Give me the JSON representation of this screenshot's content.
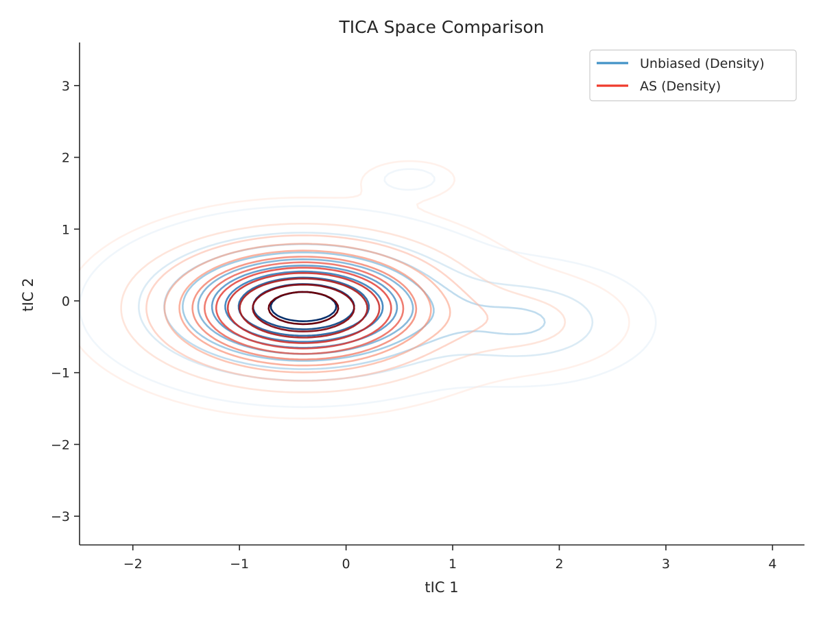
{
  "chart_data": {
    "type": "contour",
    "title": "TICA Space Comparison",
    "xlabel": "tIC 1",
    "ylabel": "tIC 2",
    "xlim": [
      -2.5,
      4.3
    ],
    "ylim": [
      -3.4,
      3.6
    ],
    "x_ticks": [
      -2,
      -1,
      0,
      1,
      2,
      3,
      4
    ],
    "y_ticks": [
      -3,
      -2,
      -1,
      0,
      1,
      2,
      3
    ],
    "x_tick_labels": [
      "−2",
      "−1",
      "0",
      "1",
      "2",
      "3",
      "4"
    ],
    "y_tick_labels": [
      "−3",
      "−2",
      "−1",
      "0",
      "1",
      "2",
      "3"
    ],
    "grid": false,
    "legend_position": "top-right",
    "series": [
      {
        "name": "Unbiased (Density)",
        "color": "#4292c6",
        "colormap": "Blues",
        "modes": [
          {
            "center": [
              -0.4,
              -0.08
            ],
            "sigma": [
              0.75,
              0.5
            ],
            "weight": 1.0
          },
          {
            "center": [
              1.7,
              -0.3
            ],
            "sigma": [
              0.55,
              0.4
            ],
            "weight": 0.22
          },
          {
            "center": [
              0.6,
              1.7
            ],
            "sigma": [
              0.25,
              0.15
            ],
            "weight": 0.03
          }
        ],
        "levels": 10
      },
      {
        "name": "AS (Density)",
        "color": "#ef3b2c",
        "colormap": "Reds",
        "modes": [
          {
            "center": [
              -0.4,
              -0.1
            ],
            "sigma": [
              0.8,
              0.55
            ],
            "weight": 1.0
          },
          {
            "center": [
              1.7,
              -0.3
            ],
            "sigma": [
              0.5,
              0.35
            ],
            "weight": 0.12
          },
          {
            "center": [
              0.6,
              1.7
            ],
            "sigma": [
              0.3,
              0.18
            ],
            "weight": 0.05
          }
        ],
        "levels": 12
      }
    ]
  }
}
